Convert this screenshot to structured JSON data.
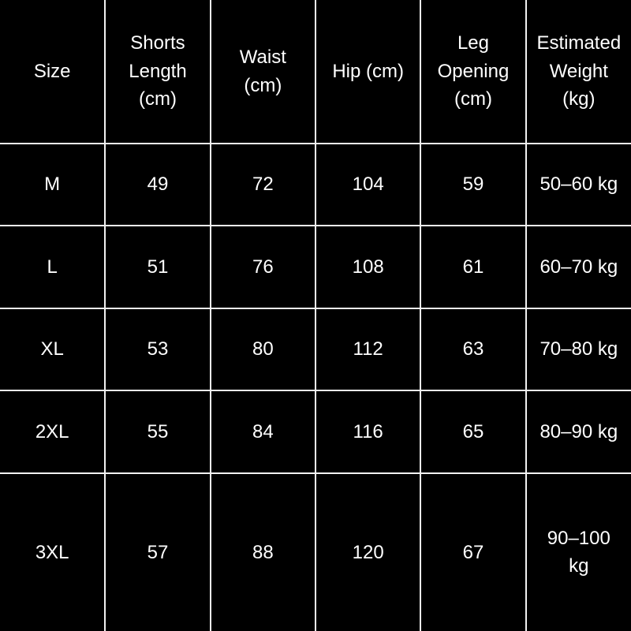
{
  "colors": {
    "background": "#000000",
    "text": "#ffffff",
    "grid": "#f2f2f2"
  },
  "chart_data": {
    "type": "table",
    "columns": [
      "Size",
      "Shorts Length (cm)",
      "Waist (cm)",
      "Hip (cm)",
      "Leg Opening (cm)",
      "Estimated Weight (kg)"
    ],
    "rows": [
      [
        "M",
        "49",
        "72",
        "104",
        "59",
        "50–60 kg"
      ],
      [
        "L",
        "51",
        "76",
        "108",
        "61",
        "60–70 kg"
      ],
      [
        "XL",
        "53",
        "80",
        "112",
        "63",
        "70–80 kg"
      ],
      [
        "2XL",
        "55",
        "84",
        "116",
        "65",
        "80–90 kg"
      ],
      [
        "3XL",
        "57",
        "88",
        "120",
        "67",
        "90–100 kg"
      ]
    ]
  }
}
